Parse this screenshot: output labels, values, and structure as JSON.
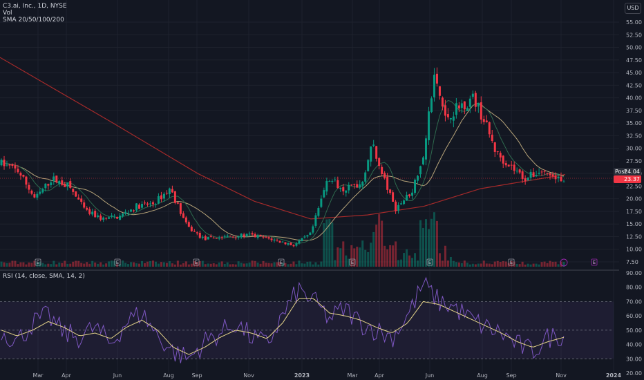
{
  "header": {
    "symbol": "C3.ai, Inc., 1D, NYSE",
    "volume_label": "Vol",
    "sma_label": "SMA 20/50/100/200",
    "currency_button": "USD"
  },
  "rsi_pane": {
    "label": "RSI (14, close, SMA, 14, 2)",
    "axis_ticks": [
      "90.00",
      "80.00",
      "70.00",
      "60.00",
      "50.00",
      "40.00",
      "30.00",
      "20.00"
    ],
    "upper_band": 70,
    "middle_band": 50,
    "lower_band": 30
  },
  "price_axis": {
    "ticks": [
      "55.00",
      "52.50",
      "50.00",
      "47.50",
      "45.00",
      "42.50",
      "40.00",
      "37.50",
      "35.00",
      "32.50",
      "30.00",
      "27.50",
      "25.00",
      "22.50",
      "20.00",
      "17.50",
      "15.00",
      "12.50",
      "10.00",
      "7.50"
    ]
  },
  "time_axis": {
    "labels": [
      "Mar",
      "Apr",
      "Jun",
      "Aug",
      "Sep",
      "Nov",
      "2023",
      "Mar",
      "Apr",
      "Jun",
      "Aug",
      "Sep",
      "Nov",
      "2024"
    ]
  },
  "price_tags": {
    "post": {
      "label": "Post",
      "value": "24.04",
      "color": "#2a2e39"
    },
    "last": {
      "label": "",
      "value": "23.37",
      "color": "#f23645"
    }
  },
  "earnings_marker": {
    "label": "E"
  },
  "colors": {
    "background": "#131722",
    "up": "#089981",
    "down": "#f23645",
    "sma_short": "#2e6a4e",
    "sma_mid": "#b8a57a",
    "sma_long": "#a52a2a",
    "rsi_line": "#7e57c2",
    "rsi_sma": "#e6d58a"
  },
  "chart_data": [
    {
      "type": "candlestick",
      "title": "C3.ai, Inc., 1D, NYSE",
      "ylim": [
        7.5,
        55
      ],
      "x_months": [
        "Mar",
        "Apr",
        "Jun",
        "Aug",
        "Sep",
        "Nov",
        "2023",
        "Mar",
        "Apr",
        "Jun",
        "Aug",
        "Sep",
        "Nov",
        "2024"
      ],
      "close_approx": [
        {
          "t": 0.0,
          "v": 27.0
        },
        {
          "t": 0.03,
          "v": 25.5
        },
        {
          "t": 0.06,
          "v": 20.0
        },
        {
          "t": 0.09,
          "v": 24.0
        },
        {
          "t": 0.12,
          "v": 22.5
        },
        {
          "t": 0.15,
          "v": 17.5
        },
        {
          "t": 0.18,
          "v": 16.0
        },
        {
          "t": 0.21,
          "v": 16.5
        },
        {
          "t": 0.24,
          "v": 18.5
        },
        {
          "t": 0.27,
          "v": 19.0
        },
        {
          "t": 0.3,
          "v": 22.0
        },
        {
          "t": 0.33,
          "v": 14.5
        },
        {
          "t": 0.36,
          "v": 12.0
        },
        {
          "t": 0.4,
          "v": 12.5
        },
        {
          "t": 0.44,
          "v": 12.8
        },
        {
          "t": 0.48,
          "v": 12.0
        },
        {
          "t": 0.52,
          "v": 10.8
        },
        {
          "t": 0.55,
          "v": 13.0
        },
        {
          "t": 0.58,
          "v": 24.0
        },
        {
          "t": 0.61,
          "v": 22.0
        },
        {
          "t": 0.64,
          "v": 23.0
        },
        {
          "t": 0.66,
          "v": 31.0
        },
        {
          "t": 0.68,
          "v": 24.0
        },
        {
          "t": 0.7,
          "v": 18.0
        },
        {
          "t": 0.73,
          "v": 21.5
        },
        {
          "t": 0.75,
          "v": 29.0
        },
        {
          "t": 0.77,
          "v": 44.0
        },
        {
          "t": 0.79,
          "v": 36.0
        },
        {
          "t": 0.81,
          "v": 38.0
        },
        {
          "t": 0.84,
          "v": 40.0
        },
        {
          "t": 0.86,
          "v": 35.0
        },
        {
          "t": 0.88,
          "v": 29.0
        },
        {
          "t": 0.91,
          "v": 26.0
        },
        {
          "t": 0.93,
          "v": 24.0
        },
        {
          "t": 0.96,
          "v": 25.5
        },
        {
          "t": 1.0,
          "v": 23.37
        }
      ],
      "sma200_approx": [
        {
          "t": 0.0,
          "v": 48.0
        },
        {
          "t": 0.2,
          "v": 35.0
        },
        {
          "t": 0.35,
          "v": 25.0
        },
        {
          "t": 0.45,
          "v": 19.5
        },
        {
          "t": 0.55,
          "v": 16.0
        },
        {
          "t": 0.65,
          "v": 16.8
        },
        {
          "t": 0.75,
          "v": 18.5
        },
        {
          "t": 0.85,
          "v": 22.0
        },
        {
          "t": 1.0,
          "v": 24.8
        }
      ]
    },
    {
      "type": "line",
      "title": "RSI (14, close, SMA, 14, 2)",
      "ylim": [
        20,
        90
      ],
      "series": [
        {
          "name": "RSI",
          "values_approx": [
            50,
            42,
            55,
            60,
            48,
            45,
            52,
            40,
            56,
            62,
            46,
            35,
            30,
            42,
            48,
            55,
            45,
            40,
            60,
            78,
            70,
            58,
            65,
            55,
            50,
            45,
            60,
            82,
            70,
            66,
            58,
            52,
            48,
            40,
            35,
            45,
            47
          ]
        },
        {
          "name": "RSI SMA",
          "values_approx": [
            50,
            46,
            50,
            56,
            52,
            46,
            48,
            44,
            52,
            57,
            50,
            38,
            33,
            38,
            45,
            50,
            48,
            44,
            55,
            72,
            72,
            62,
            60,
            57,
            52,
            48,
            55,
            70,
            68,
            63,
            58,
            53,
            48,
            42,
            38,
            42,
            45
          ]
        }
      ]
    }
  ]
}
